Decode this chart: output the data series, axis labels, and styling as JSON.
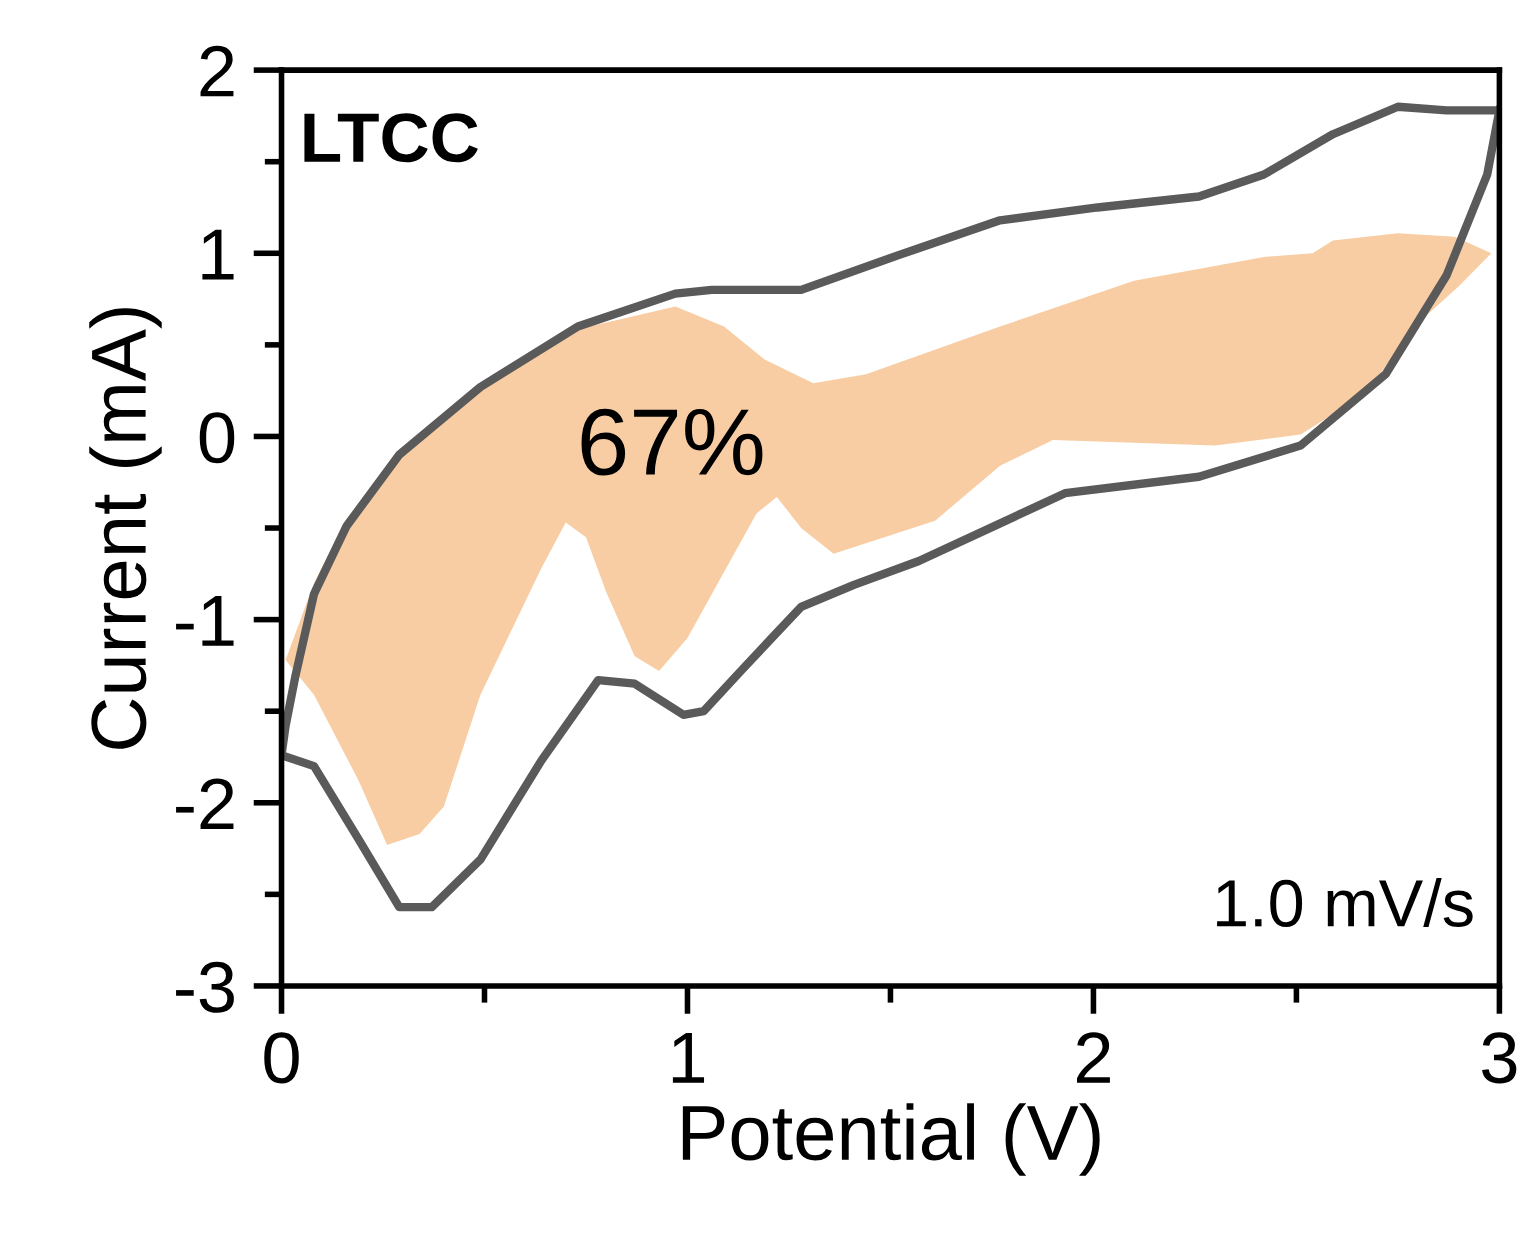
{
  "chart_data": {
    "type": "line",
    "xlabel": "Potential (V)",
    "ylabel": "Current (mA)",
    "xlim": [
      0,
      3
    ],
    "ylim": [
      -3,
      2
    ],
    "xticks": [
      0,
      1,
      2,
      3
    ],
    "yticks": [
      -3,
      -2,
      -1,
      0,
      1,
      2
    ],
    "annotations": [
      "LTCC",
      "67%",
      "1.0 mV/s"
    ],
    "series": [
      {
        "type": "area",
        "color": "#f8cda3",
        "x": [
          0.01,
          0.08,
          0.16,
          0.29,
          0.49,
          0.7,
          0.97,
          1.09,
          1.19,
          1.31,
          1.44,
          1.77,
          2.1,
          2.42,
          2.54,
          2.59,
          2.75,
          2.89,
          2.98,
          2.9,
          2.79,
          2.67,
          2.51,
          2.3,
          1.9,
          1.77,
          1.61,
          1.36,
          1.28,
          1.22,
          1.17,
          1.1,
          1.0,
          0.93,
          0.87,
          0.8,
          0.75,
          0.7,
          0.64,
          0.49,
          0.4,
          0.34,
          0.26,
          0.19,
          0.08,
          0.01
        ],
        "values": [
          -1.22,
          -0.8,
          -0.45,
          -0.1,
          0.27,
          0.57,
          0.71,
          0.6,
          0.42,
          0.29,
          0.34,
          0.6,
          0.85,
          0.98,
          1.0,
          1.07,
          1.11,
          1.09,
          1.0,
          0.82,
          0.6,
          0.23,
          0.01,
          -0.05,
          -0.02,
          -0.16,
          -0.46,
          -0.64,
          -0.5,
          -0.33,
          -0.42,
          -0.7,
          -1.1,
          -1.28,
          -1.2,
          -0.85,
          -0.55,
          -0.47,
          -0.72,
          -1.41,
          -2.02,
          -2.17,
          -2.23,
          -1.88,
          -1.41,
          -1.22
        ]
      },
      {
        "color": "#5a5a5a",
        "x": [
          0,
          0.08,
          0.19,
          0.29,
          0.37,
          0.49,
          0.64,
          0.78,
          0.87,
          0.99,
          1.04,
          1.14,
          1.28,
          1.41,
          1.57,
          1.93,
          2.26,
          2.51,
          2.72,
          2.87,
          2.97,
          3.0
        ],
        "values": [
          -1.74,
          -1.8,
          -2.2,
          -2.57,
          -2.57,
          -2.31,
          -1.77,
          -1.33,
          -1.35,
          -1.52,
          -1.5,
          -1.26,
          -0.93,
          -0.81,
          -0.68,
          -0.31,
          -0.22,
          -0.05,
          0.34,
          0.88,
          1.43,
          1.78
        ]
      },
      {
        "color": "#5a5a5a",
        "x": [
          0,
          0.01,
          0.035,
          0.08,
          0.16,
          0.29,
          0.49,
          0.73,
          0.97,
          1.06,
          1.28,
          1.52,
          1.77,
          2.01,
          2.26,
          2.42,
          2.59,
          2.75,
          2.87,
          3.0
        ],
        "values": [
          -1.74,
          -1.58,
          -1.3,
          -0.86,
          -0.49,
          -0.1,
          0.27,
          0.6,
          0.78,
          0.8,
          0.8,
          0.99,
          1.18,
          1.25,
          1.31,
          1.43,
          1.65,
          1.8,
          1.78,
          1.78
        ]
      }
    ]
  }
}
